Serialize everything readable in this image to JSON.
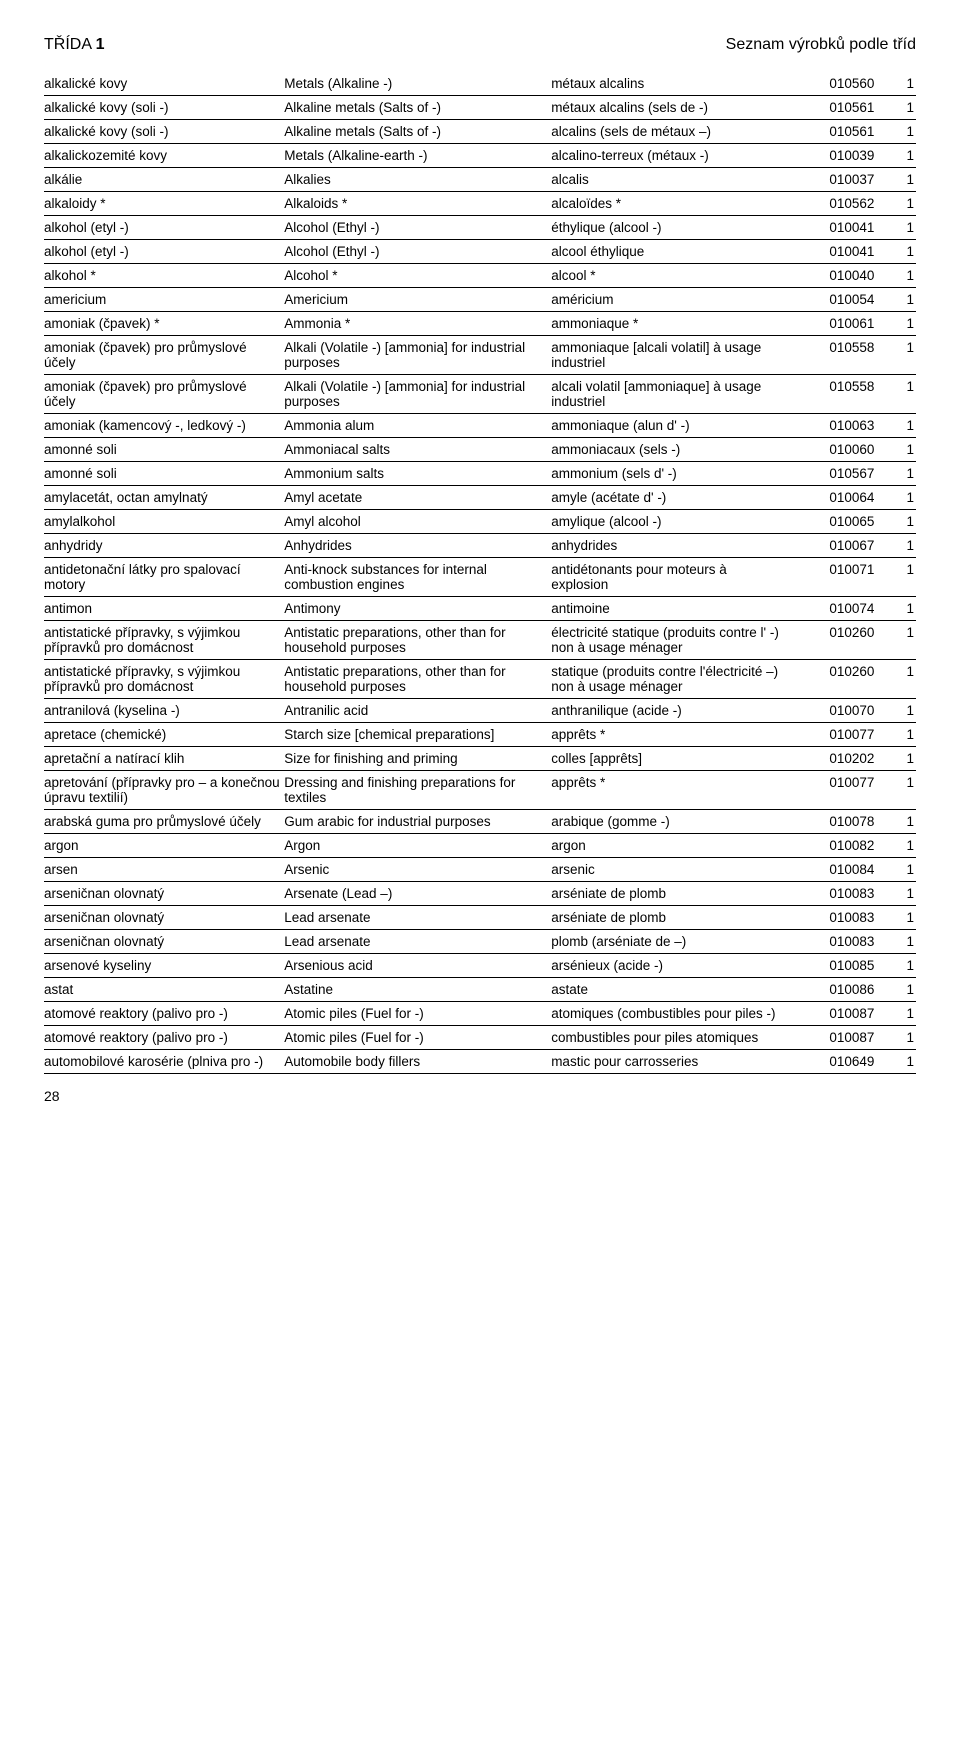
{
  "header": {
    "left_word": "TŘÍDA",
    "left_num": "1",
    "right": "Seznam výrobků podle tříd"
  },
  "page_number": "28",
  "rows": [
    {
      "cz": "alkalické kovy",
      "en": "Metals (Alkaline -)",
      "fr": "métaux alcalins",
      "code": "010560",
      "n": "1"
    },
    {
      "cz": "alkalické kovy (soli -)",
      "en": "Alkaline metals (Salts of -)",
      "fr": "métaux alcalins (sels de -)",
      "code": "010561",
      "n": "1"
    },
    {
      "cz": "alkalické kovy (soli -)",
      "en": "Alkaline metals (Salts of -)",
      "fr": "alcalins (sels de métaux –)",
      "code": "010561",
      "n": "1"
    },
    {
      "cz": "alkalickozemité kovy",
      "en": "Metals (Alkaline-earth -)",
      "fr": "alcalino-terreux (métaux -)",
      "code": "010039",
      "n": "1"
    },
    {
      "cz": "alkálie",
      "en": "Alkalies",
      "fr": "alcalis",
      "code": "010037",
      "n": "1"
    },
    {
      "cz": "alkaloidy *",
      "en": "Alkaloids *",
      "fr": "alcaloïdes *",
      "code": "010562",
      "n": "1"
    },
    {
      "cz": "alkohol (etyl -)",
      "en": "Alcohol (Ethyl -)",
      "fr": "éthylique (alcool -)",
      "code": "010041",
      "n": "1"
    },
    {
      "cz": "alkohol (etyl -)",
      "en": "Alcohol (Ethyl -)",
      "fr": "alcool éthylique",
      "code": "010041",
      "n": "1"
    },
    {
      "cz": "alkohol *",
      "en": "Alcohol *",
      "fr": "alcool *",
      "code": "010040",
      "n": "1"
    },
    {
      "cz": "americium",
      "en": "Americium",
      "fr": "américium",
      "code": "010054",
      "n": "1"
    },
    {
      "cz": "amoniak (čpavek) *",
      "en": "Ammonia *",
      "fr": "ammoniaque *",
      "code": "010061",
      "n": "1"
    },
    {
      "cz": "amoniak (čpavek) pro průmyslové účely",
      "en": "Alkali (Volatile -) [ammonia] for industrial purposes",
      "fr": "ammoniaque [alcali volatil] à usage industriel",
      "code": "010558",
      "n": "1"
    },
    {
      "cz": "amoniak (čpavek) pro průmyslové účely",
      "en": "Alkali (Volatile -) [ammonia] for industrial purposes",
      "fr": "alcali volatil [ammoniaque] à usage industriel",
      "code": "010558",
      "n": "1"
    },
    {
      "cz": "amoniak (kamencový -, ledkový -)",
      "en": "Ammonia alum",
      "fr": "ammoniaque (alun d' -)",
      "code": "010063",
      "n": "1"
    },
    {
      "cz": "amonné soli",
      "en": "Ammoniacal salts",
      "fr": "ammoniacaux (sels -)",
      "code": "010060",
      "n": "1"
    },
    {
      "cz": "amonné soli",
      "en": "Ammonium salts",
      "fr": "ammonium (sels d' -)",
      "code": "010567",
      "n": "1"
    },
    {
      "cz": "amylacetát, octan amylnatý",
      "en": "Amyl acetate",
      "fr": "amyle (acétate d' -)",
      "code": "010064",
      "n": "1"
    },
    {
      "cz": "amylalkohol",
      "en": "Amyl alcohol",
      "fr": "amylique (alcool -)",
      "code": "010065",
      "n": "1"
    },
    {
      "cz": "anhydridy",
      "en": "Anhydrides",
      "fr": "anhydrides",
      "code": "010067",
      "n": "1"
    },
    {
      "cz": "antidetonační látky pro spalovací motory",
      "en": "Anti-knock substances for internal combustion engines",
      "fr": "antidétonants pour moteurs à explosion",
      "code": "010071",
      "n": "1"
    },
    {
      "cz": "antimon",
      "en": "Antimony",
      "fr": "antimoine",
      "code": "010074",
      "n": "1"
    },
    {
      "cz": "antistatické přípravky, s výjimkou přípravků pro domácnost",
      "en": "Antistatic preparations, other than for household purposes",
      "fr": "électricité statique (produits contre l' -) non à usage ménager",
      "code": "010260",
      "n": "1"
    },
    {
      "cz": "antistatické přípravky, s výjimkou přípravků pro domácnost",
      "en": "Antistatic preparations, other than for household purposes",
      "fr": "statique (produits contre l'électricité –) non à usage ménager",
      "code": "010260",
      "n": "1"
    },
    {
      "cz": "antranilová (kyselina -)",
      "en": "Antranilic acid",
      "fr": "anthranilique (acide -)",
      "code": "010070",
      "n": "1"
    },
    {
      "cz": "apretace (chemické)",
      "en": "Starch size [chemical preparations]",
      "fr": "apprêts *",
      "code": "010077",
      "n": "1"
    },
    {
      "cz": "apretační a natírací klih",
      "en": "Size for finishing and priming",
      "fr": "colles [apprêts]",
      "code": "010202",
      "n": "1"
    },
    {
      "cz": "apretování (přípravky pro – a konečnou úpravu textilií)",
      "en": "Dressing and finishing preparations for textiles",
      "fr": "apprêts *",
      "code": "010077",
      "n": "1"
    },
    {
      "cz": "arabská guma pro průmyslové účely",
      "en": "Gum arabic for industrial purposes",
      "fr": "arabique (gomme -)",
      "code": "010078",
      "n": "1"
    },
    {
      "cz": "argon",
      "en": "Argon",
      "fr": "argon",
      "code": "010082",
      "n": "1"
    },
    {
      "cz": "arsen",
      "en": "Arsenic",
      "fr": "arsenic",
      "code": "010084",
      "n": "1"
    },
    {
      "cz": "arseničnan olovnatý",
      "en": "Arsenate (Lead –)",
      "fr": "arséniate de plomb",
      "code": "010083",
      "n": "1"
    },
    {
      "cz": "arseničnan olovnatý",
      "en": "Lead arsenate",
      "fr": "arséniate de plomb",
      "code": "010083",
      "n": "1"
    },
    {
      "cz": "arseničnan olovnatý",
      "en": "Lead arsenate",
      "fr": "plomb (arséniate de –)",
      "code": "010083",
      "n": "1"
    },
    {
      "cz": "arsenové kyseliny",
      "en": "Arsenious acid",
      "fr": "arsénieux (acide -)",
      "code": "010085",
      "n": "1"
    },
    {
      "cz": "astat",
      "en": "Astatine",
      "fr": "astate",
      "code": "010086",
      "n": "1"
    },
    {
      "cz": "atomové reaktory (palivo pro -)",
      "en": "Atomic piles (Fuel for -)",
      "fr": "atomiques (combustibles pour piles -)",
      "code": "010087",
      "n": "1"
    },
    {
      "cz": "atomové reaktory (palivo pro -)",
      "en": "Atomic piles (Fuel for -)",
      "fr": "combustibles pour piles atomiques",
      "code": "010087",
      "n": "1"
    },
    {
      "cz": "automobilové karosérie (plniva pro -)",
      "en": "Automobile body fillers",
      "fr": "mastic pour carrosseries",
      "code": "010649",
      "n": "1"
    }
  ]
}
